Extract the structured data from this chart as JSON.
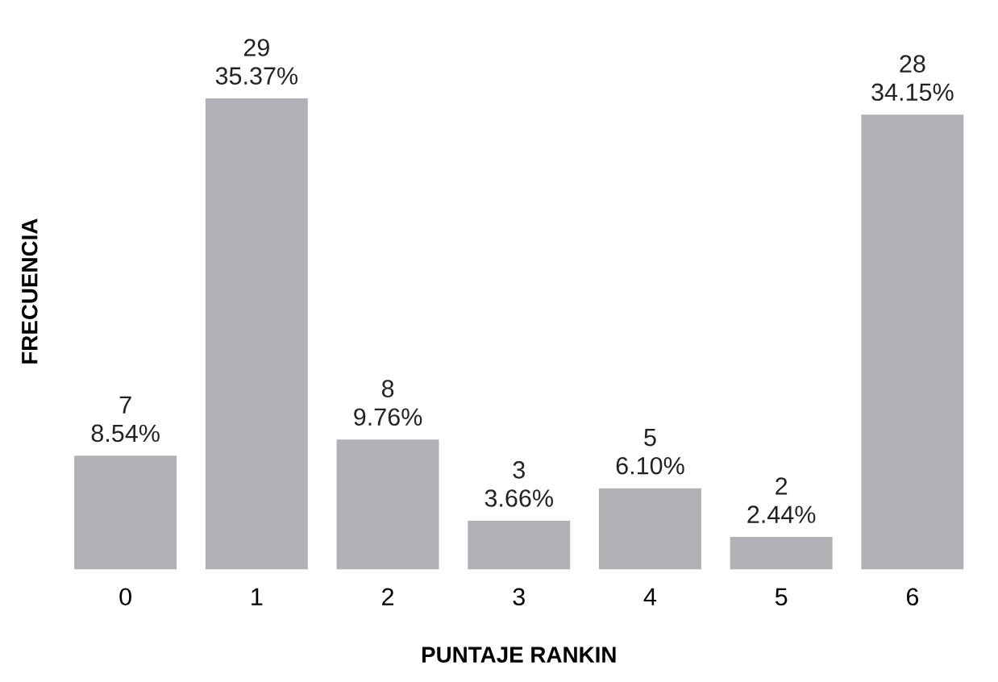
{
  "chart_data": {
    "type": "bar",
    "xlabel": "PUNTAJE RANKIN",
    "ylabel": "FRECUENCIA",
    "categories": [
      "0",
      "1",
      "2",
      "3",
      "4",
      "5",
      "6"
    ],
    "values": [
      7,
      29,
      8,
      3,
      5,
      2,
      28
    ],
    "value_labels": [
      "7\n8.54%",
      "29\n35.37%",
      "8\n9.76%",
      "3\n3.66%",
      "5\n6.10%",
      "2\n2.44%",
      "28\n34.15%"
    ],
    "color": "#b1b1b5",
    "tick_labels": "x",
    "grid": false,
    "legend": false
  }
}
